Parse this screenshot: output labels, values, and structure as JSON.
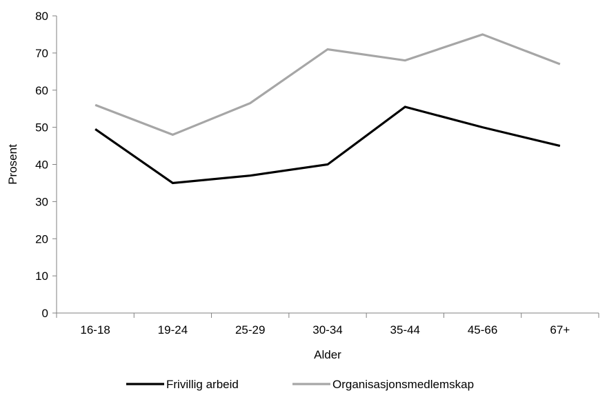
{
  "chart_data": {
    "type": "line",
    "title": "",
    "xlabel": "Alder",
    "ylabel": "Prosent",
    "categories": [
      "16-18",
      "19-24",
      "25-29",
      "30-34",
      "35-44",
      "45-66",
      "67+"
    ],
    "ylim": [
      0,
      80
    ],
    "yticks": [
      "0",
      "10",
      "20",
      "30",
      "40",
      "50",
      "60",
      "70",
      "80"
    ],
    "grid": false,
    "legend_position": "bottom",
    "series": [
      {
        "name": "Frivillig arbeid",
        "color": "#000000",
        "values": [
          49.5,
          35,
          37,
          40,
          55.5,
          50,
          45
        ]
      },
      {
        "name": "Organisasjonsmedlemskap",
        "color": "#a6a6a6",
        "values": [
          56,
          48,
          56.5,
          71,
          68,
          75,
          67
        ]
      }
    ]
  }
}
